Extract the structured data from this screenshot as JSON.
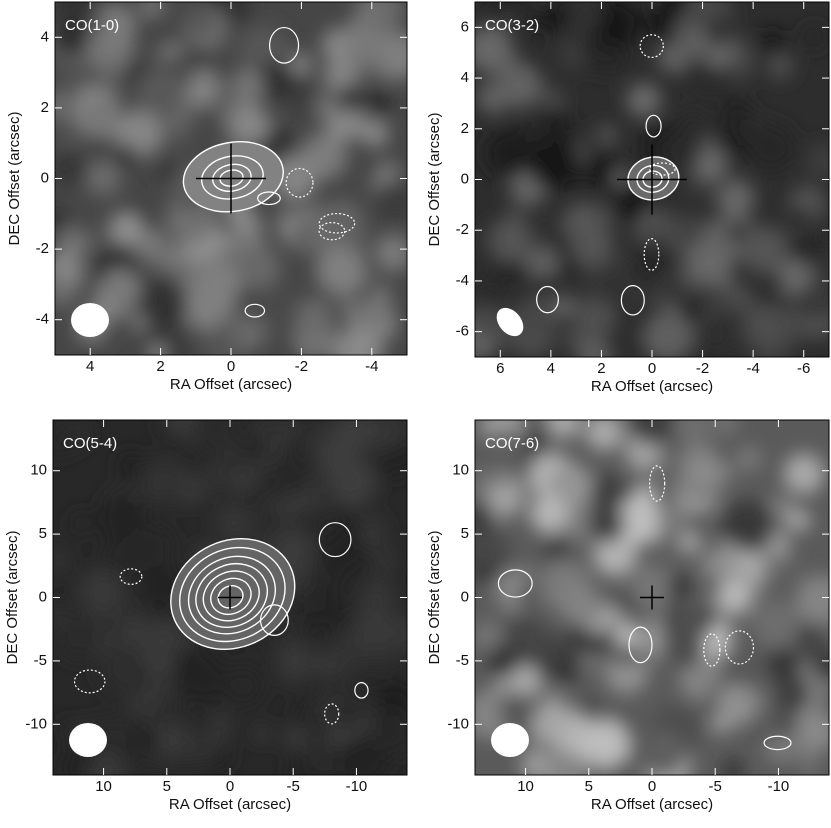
{
  "chart_data": [
    {
      "type": "image",
      "label": "CO(1-0)",
      "xlabel": "RA Offset (arcsec)",
      "ylabel": "DEC Offset (arcsec)",
      "xlim": [
        5,
        -5
      ],
      "ylim": [
        -5,
        5
      ],
      "xticks": [
        4,
        2,
        0,
        -2,
        -4
      ],
      "yticks": [
        -4,
        -2,
        0,
        2,
        4
      ]
    },
    {
      "type": "image",
      "label": "CO(3-2)",
      "xlabel": "RA Offset (arcsec)",
      "ylabel": "DEC Offset (arcsec)",
      "xlim": [
        7,
        -7
      ],
      "ylim": [
        -7,
        7
      ],
      "xticks": [
        6,
        4,
        2,
        0,
        -2,
        -4,
        -6
      ],
      "yticks": [
        -6,
        -4,
        -2,
        0,
        2,
        4,
        6
      ]
    },
    {
      "type": "image",
      "label": "CO(5-4)",
      "xlabel": "RA Offset (arcsec)",
      "ylabel": "DEC Offset (arcsec)",
      "xlim": [
        14,
        -14
      ],
      "ylim": [
        -14,
        14
      ],
      "xticks": [
        10,
        5,
        0,
        -5,
        -10
      ],
      "yticks": [
        -10,
        -5,
        0,
        5,
        10
      ]
    },
    {
      "type": "image",
      "label": "CO(7-6)",
      "xlabel": "RA Offset (arcsec)",
      "ylabel": "DEC Offset (arcsec)",
      "xlim": [
        14,
        -14
      ],
      "ylim": [
        -14,
        14
      ],
      "xticks": [
        10,
        5,
        0,
        -5,
        -10
      ],
      "yticks": [
        -10,
        -5,
        0,
        5,
        10
      ]
    }
  ]
}
